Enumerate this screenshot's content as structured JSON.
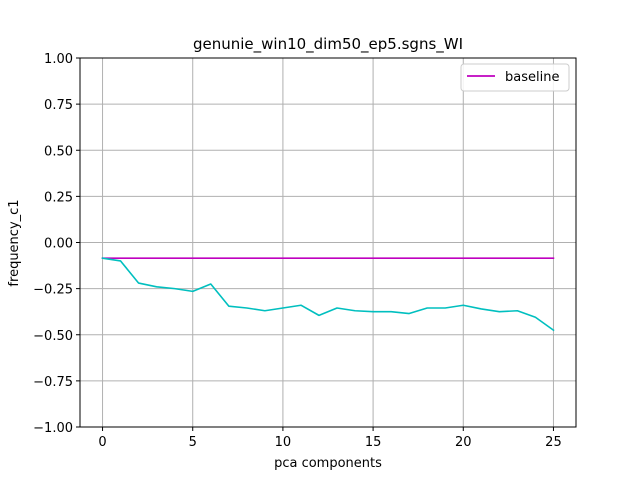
{
  "chart_data": {
    "type": "line",
    "title": "genunie_win10_dim50_ep5.sgns_WI",
    "xlabel": "pca components",
    "ylabel": "frequency_c1",
    "xlim": [
      -1.25,
      26.25
    ],
    "ylim": [
      -1.0,
      1.0
    ],
    "grid": true,
    "legend_position": "top-right",
    "x_ticks": [
      0,
      5,
      10,
      15,
      20,
      25
    ],
    "y_ticks": [
      -1.0,
      -0.75,
      -0.5,
      -0.25,
      0.0,
      0.25,
      0.5,
      0.75,
      1.0
    ],
    "x_tick_labels": [
      "0",
      "5",
      "10",
      "15",
      "20",
      "25"
    ],
    "y_tick_labels": [
      "−1.00",
      "−0.75",
      "−0.50",
      "−0.25",
      "0.00",
      "0.25",
      "0.50",
      "0.75",
      "1.00"
    ],
    "series": [
      {
        "name": "baseline",
        "color": "#bf00bf",
        "x": [
          0,
          25
        ],
        "y": [
          -0.085,
          -0.085
        ]
      },
      {
        "color": "#00bfbf",
        "x": [
          0,
          1,
          2,
          3,
          4,
          5,
          6,
          7,
          8,
          9,
          10,
          11,
          12,
          13,
          14,
          15,
          16,
          17,
          18,
          19,
          20,
          21,
          22,
          23,
          24,
          25
        ],
        "y": [
          -0.085,
          -0.1,
          -0.22,
          -0.24,
          -0.25,
          -0.265,
          -0.225,
          -0.345,
          -0.355,
          -0.37,
          -0.355,
          -0.34,
          -0.395,
          -0.355,
          -0.37,
          -0.375,
          -0.375,
          -0.385,
          -0.355,
          -0.355,
          -0.34,
          -0.36,
          -0.375,
          -0.37,
          -0.405,
          -0.475
        ]
      }
    ]
  }
}
